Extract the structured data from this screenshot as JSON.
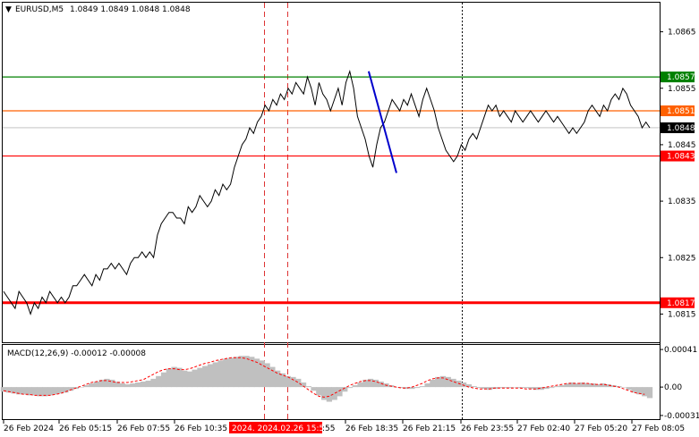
{
  "header": {
    "symbol": "EURUSD,M5",
    "ohlc": "1.0849 1.0849 1.0848 1.0848",
    "arrow": "▼"
  },
  "macd": {
    "label": "MACD(12,26,9) -0.00012 -0.00008"
  },
  "colors": {
    "bg": "#ffffff",
    "price_line": "#000000",
    "level_green": "#008000",
    "level_orange": "#ff6000",
    "level_red": "#ff0000",
    "trend_blue": "#0000cc",
    "macd_hist": "#c0c0c0",
    "macd_signal": "#ff0000",
    "grid_dot": "#000000"
  },
  "chart_data": [
    {
      "type": "line",
      "title": "EURUSD,M5",
      "x_tick_labels": [
        "26 Feb 2024",
        "26 Feb 05:15",
        "26 Feb 07:55",
        "26 Feb 10:35",
        "2024.02.26 15:50",
        "26 Feb 18:35",
        "26 Feb 21:15",
        "26 Feb 23:55",
        "27 Feb 02:40",
        "27 Feb 05:20",
        "27 Feb 08:05"
      ],
      "time_crosshair_label": "2024. 2024.02.26 15:50",
      "y_tick_labels": [
        "1.0865",
        "1.0855",
        "1.0845",
        "1.0835",
        "1.0825",
        "1.0815"
      ],
      "ylim": [
        1.081,
        1.087
      ],
      "levels": [
        {
          "value": 1.0857,
          "label": "1.0857",
          "color": "#008000"
        },
        {
          "value": 1.0851,
          "label": "1.0851",
          "color": "#ff6000"
        },
        {
          "value": 1.0843,
          "label": "1.0843",
          "color": "#ff0000"
        },
        {
          "value": 1.0817,
          "label": "1.0817",
          "color": "#ff0000"
        }
      ],
      "current_price": {
        "value": 1.0848,
        "label": "1.0848"
      },
      "trend_segment": {
        "from": {
          "t": 0.565,
          "price": 1.0858
        },
        "to": {
          "t": 0.608,
          "price": 1.084
        }
      },
      "series": [
        {
          "values": [
            1.0819,
            1.0818,
            1.0817,
            1.0816,
            1.0819,
            1.0818,
            1.0817,
            1.0815,
            1.0817,
            1.0816,
            1.0818,
            1.0817,
            1.0819,
            1.0818,
            1.0817,
            1.0818,
            1.0817,
            1.0818,
            1.082,
            1.082,
            1.0821,
            1.0822,
            1.0821,
            1.082,
            1.0822,
            1.0821,
            1.0823,
            1.0823,
            1.0824,
            1.0823,
            1.0824,
            1.0823,
            1.0822,
            1.0824,
            1.0825,
            1.0825,
            1.0826,
            1.0825,
            1.0826,
            1.0825,
            1.0829,
            1.0831,
            1.0832,
            1.0833,
            1.0833,
            1.0832,
            1.0832,
            1.0831,
            1.0834,
            1.0833,
            1.0834,
            1.0836,
            1.0835,
            1.0834,
            1.0835,
            1.0837,
            1.0836,
            1.0838,
            1.0837,
            1.0838,
            1.0841,
            1.0843,
            1.0845,
            1.0846,
            1.0848,
            1.0847,
            1.0849,
            1.085,
            1.0852,
            1.0851,
            1.0853,
            1.0852,
            1.0854,
            1.0853,
            1.0855,
            1.0854,
            1.0856,
            1.0855,
            1.0854,
            1.0857,
            1.0855,
            1.0852,
            1.0856,
            1.0854,
            1.0853,
            1.0851,
            1.0853,
            1.0855,
            1.0852,
            1.0856,
            1.0858,
            1.0855,
            1.085,
            1.0848,
            1.0846,
            1.0843,
            1.0841,
            1.0845,
            1.0848,
            1.0849,
            1.0851,
            1.0853,
            1.0852,
            1.0851,
            1.0853,
            1.0852,
            1.0854,
            1.0852,
            1.085,
            1.0853,
            1.0855,
            1.0853,
            1.0851,
            1.0848,
            1.0846,
            1.0844,
            1.0843,
            1.0842,
            1.0843,
            1.0845,
            1.0844,
            1.0846,
            1.0847,
            1.0846,
            1.0848,
            1.085,
            1.0852,
            1.0851,
            1.0852,
            1.085,
            1.0851,
            1.085,
            1.0849,
            1.0851,
            1.085,
            1.0849,
            1.085,
            1.0851,
            1.085,
            1.0849,
            1.085,
            1.0851,
            1.085,
            1.0849,
            1.085,
            1.0849,
            1.0848,
            1.0847,
            1.0848,
            1.0847,
            1.0848,
            1.0849,
            1.0851,
            1.0852,
            1.0851,
            1.085,
            1.0852,
            1.0851,
            1.0853,
            1.0854,
            1.0853,
            1.0855,
            1.0854,
            1.0852,
            1.0851,
            1.085,
            1.0848,
            1.0849,
            1.0848
          ]
        }
      ]
    },
    {
      "type": "bar",
      "title": "MACD(12,26,9) -0.00012 -0.00008",
      "y_tick_labels": [
        "0.00041",
        "0.00",
        "-0.00031"
      ],
      "ylim": [
        -0.00034,
        0.00044
      ],
      "series": [
        {
          "values": [
            -5e-05,
            -6e-05,
            -7e-05,
            -8e-05,
            -8e-05,
            -9e-05,
            -9e-05,
            -0.0001,
            -0.0001,
            -9e-05,
            -8e-05,
            -7e-05,
            -6e-05,
            -4e-05,
            -2e-05,
            0.0,
            2e-05,
            4e-05,
            6e-05,
            8e-05,
            9e-05,
            8e-05,
            6e-05,
            4e-05,
            3e-05,
            4e-05,
            5e-05,
            6e-05,
            7e-05,
            9e-05,
            0.00012,
            0.00016,
            0.0002,
            0.00022,
            0.00021,
            0.00018,
            0.00017,
            0.00019,
            0.00021,
            0.00023,
            0.00025,
            0.00027,
            0.00029,
            0.00031,
            0.00032,
            0.00033,
            0.00034,
            0.00034,
            0.00033,
            0.00031,
            0.00029,
            0.00026,
            0.00022,
            0.00018,
            0.00015,
            0.00012,
            0.00011,
            9e-05,
            5e-05,
            1e-05,
            -4e-05,
            -9e-05,
            -0.00014,
            -0.00016,
            -0.00014,
            -0.0001,
            -5e-05,
            -1e-05,
            2e-05,
            5e-05,
            8e-05,
            9e-05,
            8e-05,
            6e-05,
            4e-05,
            2e-05,
            0.0,
            -1e-05,
            -2e-05,
            -2e-05,
            -1e-05,
            1e-05,
            4e-05,
            8e-05,
            0.00011,
            0.00012,
            0.00011,
            9e-05,
            7e-05,
            5e-05,
            3e-05,
            1e-05,
            -1e-05,
            -2e-05,
            -3e-05,
            -2e-05,
            -1e-05,
            -1e-05,
            -1e-05,
            0.0,
            -1e-05,
            -1e-05,
            -2e-05,
            -3e-05,
            -3e-05,
            -2e-05,
            -1e-05,
            1e-05,
            2e-05,
            4e-05,
            5e-05,
            4e-05,
            5e-05,
            4e-05,
            4e-05,
            3e-05,
            4e-05,
            3e-05,
            2e-05,
            1e-05,
            0.0,
            -3e-05,
            -6e-05,
            -8e-05,
            -0.0001,
            -0.00012
          ]
        },
        {
          "values": [
            -4e-05,
            -5e-05,
            -6e-05,
            -7e-05,
            -8e-05,
            -8e-05,
            -9e-05,
            -9e-05,
            -9e-05,
            -9e-05,
            -8e-05,
            -7e-05,
            -5e-05,
            -3e-05,
            -1e-05,
            1e-05,
            3e-05,
            5e-05,
            6e-05,
            7e-05,
            7e-05,
            6e-05,
            5e-05,
            5e-05,
            5e-05,
            6e-05,
            7e-05,
            8e-05,
            0.00011,
            0.00014,
            0.00017,
            0.00019,
            0.0002,
            0.0002,
            0.00019,
            0.00019,
            0.0002,
            0.00022,
            0.00024,
            0.00026,
            0.00027,
            0.00029,
            0.0003,
            0.00031,
            0.00032,
            0.00032,
            0.00032,
            0.00031,
            0.00029,
            0.00027,
            0.00024,
            0.00021,
            0.00018,
            0.00015,
            0.00013,
            0.00011,
            8e-05,
            5e-05,
            1e-05,
            -3e-05,
            -7e-05,
            -0.0001,
            -0.00011,
            -0.0001,
            -7e-05,
            -4e-05,
            -1e-05,
            2e-05,
            4e-05,
            6e-05,
            7e-05,
            7e-05,
            6e-05,
            4e-05,
            2e-05,
            1e-05,
            0.0,
            -1e-05,
            -1e-05,
            0.0,
            2e-05,
            4e-05,
            7e-05,
            9e-05,
            0.0001,
            0.0001,
            8e-05,
            6e-05,
            4e-05,
            2e-05,
            0.0,
            -1e-05,
            -2e-05,
            -2e-05,
            -2e-05,
            -1e-05,
            -1e-05,
            -1e-05,
            -1e-05,
            -1e-05,
            -1e-05,
            -2e-05,
            -2e-05,
            -2e-05,
            -1e-05,
            0.0,
            1e-05,
            2e-05,
            3e-05,
            4e-05,
            4e-05,
            4e-05,
            4e-05,
            4e-05,
            3e-05,
            3e-05,
            3e-05,
            2e-05,
            1e-05,
            0.0,
            -2e-05,
            -4e-05,
            -6e-05,
            -7e-05,
            -8e-05
          ]
        }
      ]
    }
  ]
}
